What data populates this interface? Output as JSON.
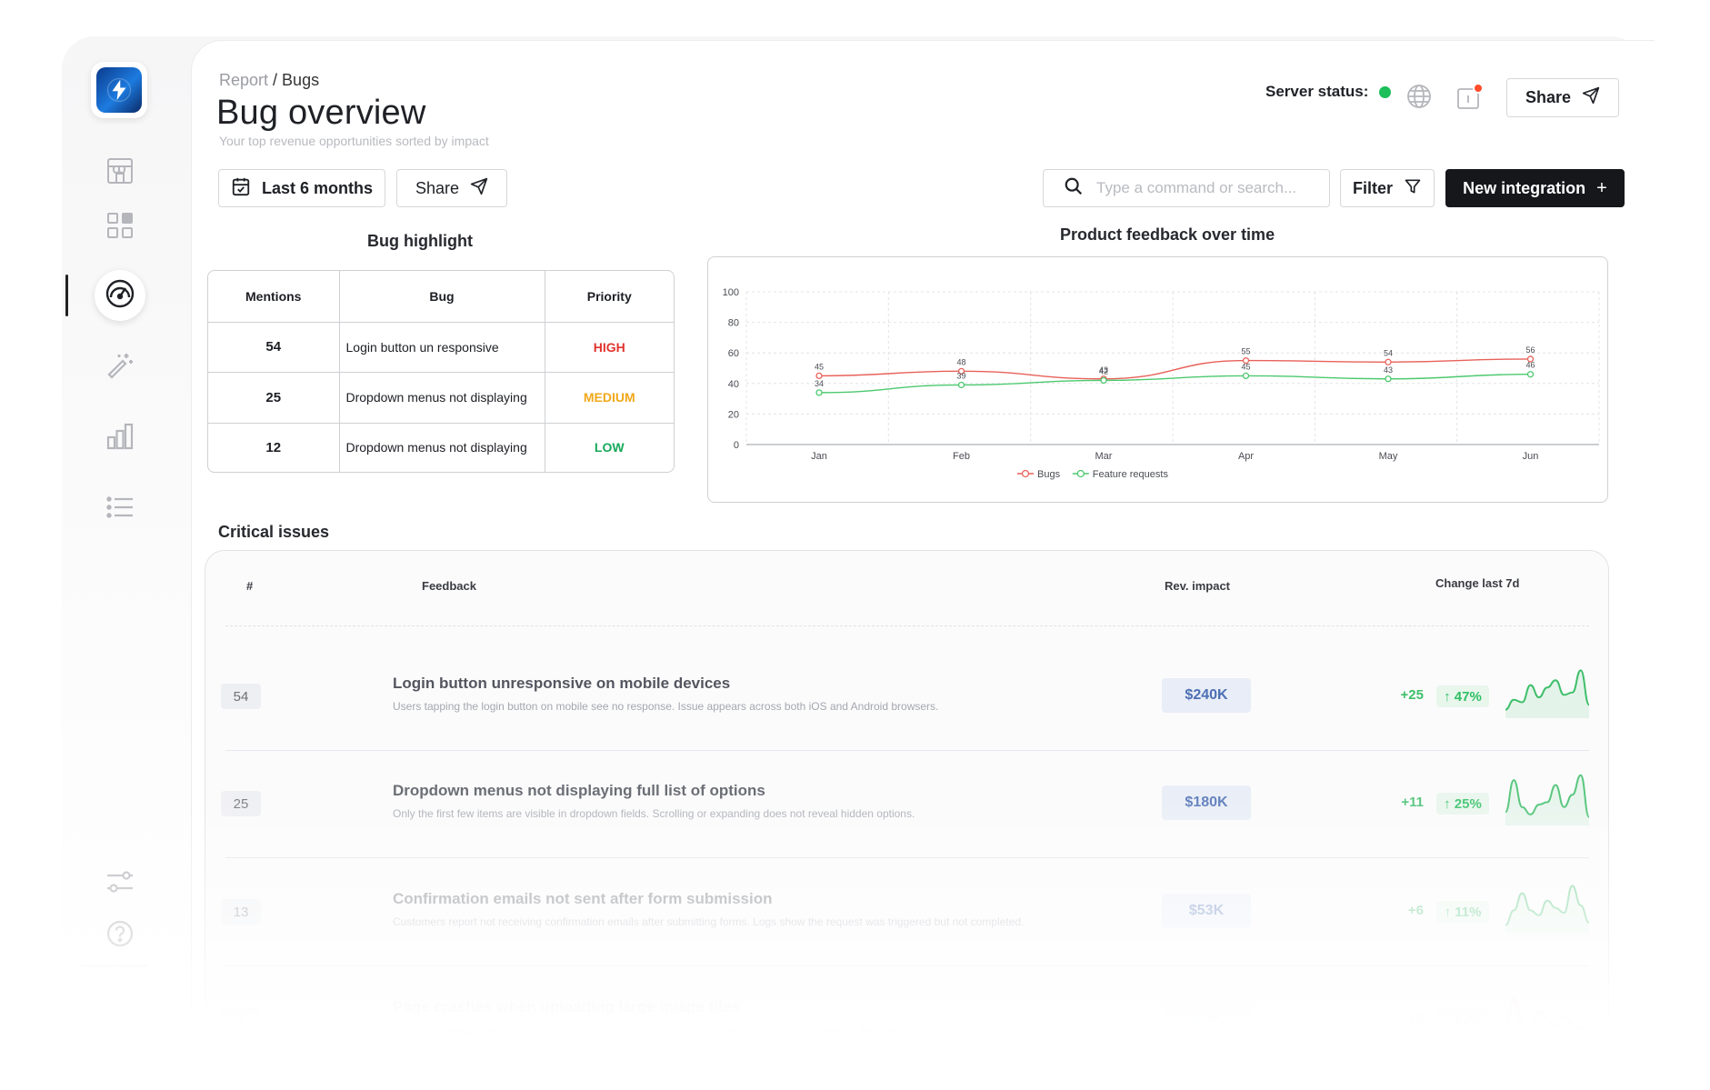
{
  "breadcrumb": {
    "parent": "Report",
    "separator": " / ",
    "current": "Bugs"
  },
  "page": {
    "title": "Bug overview",
    "subtitle": "Your top revenue opportunities sorted by impact"
  },
  "header": {
    "server_status_label": "Server status:",
    "server_status_color": "#1cbf5a",
    "share_label": "Share"
  },
  "toolbar": {
    "date_range_label": "Last 6 months",
    "share_label": "Share",
    "search_placeholder": "Type a command or search...",
    "filter_label": "Filter",
    "new_integration_label": "New integration"
  },
  "sidebar": {
    "items": [
      {
        "icon": "store-icon"
      },
      {
        "icon": "grid-icon"
      },
      {
        "icon": "speedometer-icon",
        "active": true
      },
      {
        "icon": "magic-wand-icon"
      },
      {
        "icon": "bar-chart-icon"
      },
      {
        "icon": "list-icon"
      }
    ],
    "bottom_items": [
      {
        "icon": "sliders-icon"
      },
      {
        "icon": "help-icon"
      }
    ]
  },
  "bug_highlight": {
    "title": "Bug highlight",
    "columns": [
      "Mentions",
      "Bug",
      "Priority"
    ],
    "rows": [
      {
        "mentions": "54",
        "bug": "Login button un responsive",
        "priority": "HIGH",
        "priority_color": "#e0342f"
      },
      {
        "mentions": "25",
        "bug": "Dropdown menus not displaying",
        "priority": "MEDIUM",
        "priority_color": "#f0a818"
      },
      {
        "mentions": "12",
        "bug": "Dropdown menus not displaying",
        "priority": "LOW",
        "priority_color": "#17a85a"
      }
    ]
  },
  "chart_data": {
    "type": "line",
    "title": "Product feedback over time",
    "categories": [
      "Jan",
      "Feb",
      "Mar",
      "Apr",
      "May",
      "Jun"
    ],
    "series": [
      {
        "name": "Bugs",
        "color": "#e8615a",
        "values": [
          45,
          48,
          43,
          55,
          54,
          56
        ]
      },
      {
        "name": "Feature requests",
        "color": "#4cc96e",
        "values": [
          34,
          39,
          42,
          45,
          43,
          46
        ]
      }
    ],
    "ylim": [
      0,
      100
    ],
    "yticks": [
      0,
      20,
      40,
      60,
      80,
      100
    ],
    "grid": true,
    "legend": "bottom"
  },
  "critical_issues": {
    "title": "Critical issues",
    "columns": {
      "index": "#",
      "feedback": "Feedback",
      "rev_impact": "Rev. impact",
      "change": "Change last 7d"
    },
    "rows": [
      {
        "index": "54",
        "title": "Login button unresponsive on mobile devices",
        "description": "Users tapping the login button on mobile see no response. Issue appears across both iOS and Android browsers.",
        "rev_impact": "$240K",
        "delta": "+25",
        "pct": "↑ 47%",
        "trend": "up",
        "spark": [
          10,
          30,
          25,
          60,
          35,
          55,
          70,
          40,
          45,
          90,
          20
        ]
      },
      {
        "index": "25",
        "title": "Dropdown menus not displaying full list of options",
        "description": "Only the first few items are visible in dropdown fields. Scrolling or expanding does not reveal hidden options.",
        "rev_impact": "$180K",
        "delta": "+11",
        "pct": "↑ 25%",
        "trend": "up",
        "spark": [
          20,
          85,
          30,
          15,
          35,
          40,
          75,
          30,
          55,
          95,
          10
        ]
      },
      {
        "index": "13",
        "title": "Confirmation emails not sent after form submission",
        "description": "Customers report not receiving confirmation emails after submitting forms. Logs show the request was triggered but not completed.",
        "rev_impact": "$53K",
        "delta": "+6",
        "pct": "↑ 11%",
        "trend": "up",
        "spark": [
          10,
          40,
          75,
          40,
          30,
          60,
          45,
          35,
          90,
          50,
          15
        ]
      },
      {
        "index": "2",
        "title": "Page crashes when uploading large image files",
        "description": "Uploading images over 5MB causes the page to freeze or reload. No error message is shown to the user.",
        "rev_impact": "$25K",
        "delta": "-15",
        "pct": "↓ 47%",
        "trend": "down",
        "spark": [
          15,
          80,
          30,
          20,
          55,
          35,
          25,
          45,
          30,
          20,
          10
        ]
      }
    ]
  }
}
